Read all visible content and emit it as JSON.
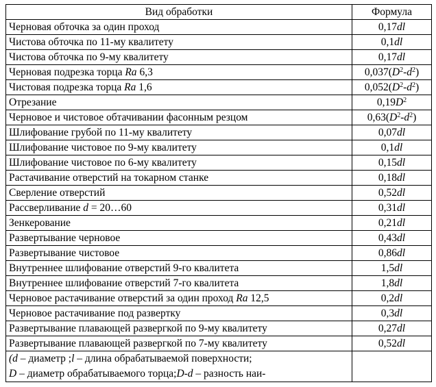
{
  "headers": {
    "col1": "Вид обработки",
    "col2": "Формула"
  },
  "rows": [
    {
      "name": "Черновая обточка за один проход",
      "coef": "0,17",
      "var": "dl"
    },
    {
      "name": "Чистова обточка по 11-му квалитету",
      "coef": "0,1",
      "var": "dl"
    },
    {
      "name": "Чистова обточка по 9-му квалитету",
      "coef": "0,17",
      "var": "dl"
    },
    {
      "name_a": "Черновая подрезка торца ",
      "name_i": "Ra",
      "name_b": " 6,3",
      "coef": "0,037",
      "D": "D",
      "d": "d"
    },
    {
      "name_a": "Чистовая подрезка торца ",
      "name_i": "Ra",
      "name_b": " 1,6",
      "coef": "0,052",
      "D": "D",
      "d": "d"
    },
    {
      "name": "Отрезание",
      "coef": "0,19",
      "var": "D",
      "sup": "2"
    },
    {
      "name": "Черновое и чистовое обтачивании фасонным резцом",
      "coef": "0,63",
      "D": "D",
      "d": "d"
    },
    {
      "name": "Шлифование грубой по 11-му квалитету",
      "coef": "0,07",
      "var": "dl"
    },
    {
      "name": "Шлифование чистовое по 9-му квалитету",
      "coef": "0,1",
      "var": "dl"
    },
    {
      "name": "Шлифование чистовое по 6-му квалитету",
      "coef": "0,15",
      "var": "dl"
    },
    {
      "name": "Растачивание отверстий на токарном станке",
      "coef": "0,18",
      "var": "dl"
    },
    {
      "name": "Сверление отверстий",
      "coef": "0,52",
      "var": "dl"
    },
    {
      "name_a": "Рассверливание ",
      "name_i": "d",
      "name_b": " = 20…60",
      "coef": "0,31",
      "var": "dl"
    },
    {
      "name": "Зенкерование",
      "coef": "0,21",
      "var": "dl"
    },
    {
      "name": "Развертывание черновое",
      "coef": "0,43",
      "var": "dl"
    },
    {
      "name": "Развертывание чистовое",
      "coef": "0,86",
      "var": "dl"
    },
    {
      "name": "Внутреннее шлифование отверстий 9-го квалитета",
      "coef": "1,5",
      "var": "dl"
    },
    {
      "name": "Внутреннее шлифование отверстий 7-го квалитета",
      "coef": "1,8",
      "var": "dl"
    },
    {
      "name_a": "Черновое растачивание отверстий за один проход ",
      "name_i": "Ra",
      "name_b": " 12,5",
      "coef": "0,2",
      "var": "dl"
    },
    {
      "name": "Черновое растачивание под развертку",
      "coef": "0,3",
      "var": "dl"
    },
    {
      "name": "Развертывание плавающей развергкой по 9-му квалитету",
      "coef": "0,27",
      "var": "dl"
    },
    {
      "name": "Развертывание плавающей развергкой по 7-му квалитету",
      "coef": "0,52",
      "var": "dl"
    }
  ],
  "formula_parts": {
    "open": "(",
    "sup2": "2",
    "minus": "-",
    "close": ")"
  },
  "note": {
    "l1_open": "(",
    "l1_d": "d",
    "l1_t1": " – диаметр ;",
    "l1_l": "l",
    "l1_t2": " – длина обрабатываемой поверхности;",
    "l2_D": "D",
    "l2_t1": " – диаметр обрабатываемого торца;",
    "l2_Dd": "D-d",
    "l2_t2": " – разность наи-"
  }
}
